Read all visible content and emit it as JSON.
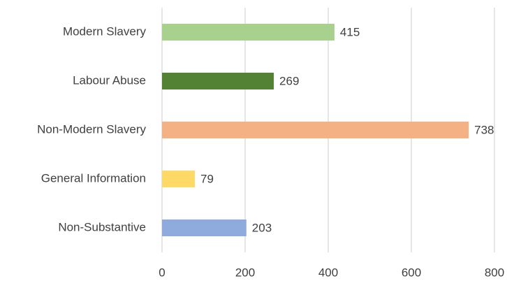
{
  "chart_data": {
    "type": "hbar",
    "categories": [
      "Modern Slavery",
      "Labour Abuse",
      "Non-Modern Slavery",
      "General Information",
      "Non-Substantive"
    ],
    "values": [
      415,
      269,
      738,
      79,
      203
    ],
    "colors": [
      "#a9d18e",
      "#548235",
      "#f4b183",
      "#ffd966",
      "#8faadc"
    ],
    "xlim": [
      0,
      800
    ],
    "xticks": [
      0,
      200,
      400,
      600,
      800
    ],
    "grid": true
  }
}
